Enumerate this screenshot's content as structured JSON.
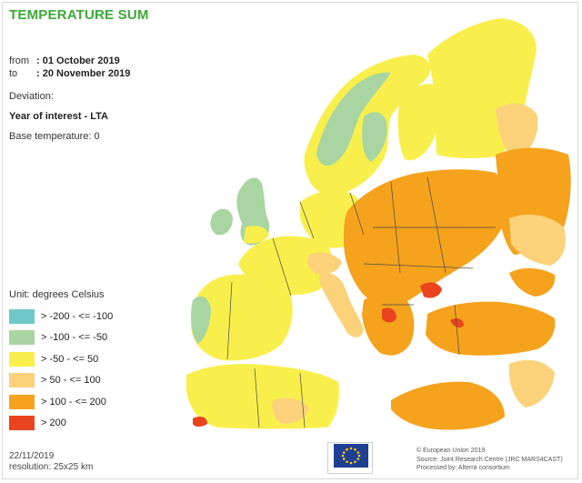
{
  "title": "TEMPERATURE SUM",
  "period": {
    "from_label": "from",
    "from_value": ": 01 October 2019",
    "to_label": "to",
    "to_value": ": 20 November 2019"
  },
  "deviation_label": "Deviation:",
  "year_of_interest": "Year of interest - LTA",
  "base_temperature": "Base temperature: 0",
  "legend": {
    "unit": "Unit: degrees Celsius",
    "items": [
      {
        "label": "> -200 - <= -100",
        "color": "#6fc8c8"
      },
      {
        "label": "> -100 - <= -50",
        "color": "#a8d5a2"
      },
      {
        "label": "> -50 - <= 50",
        "color": "#f9ef4c"
      },
      {
        "label": "> 50 - <= 100",
        "color": "#fbd27a"
      },
      {
        "label": "> 100 - <= 200",
        "color": "#f5a21c"
      },
      {
        "label": "> 200",
        "color": "#e9441d"
      }
    ]
  },
  "footer": {
    "date": "22/11/2019",
    "resolution": "resolution: 25x25 km",
    "credit_1": "© European Union 2019",
    "credit_2": "Source: Joint Research Centre (JRC MARS4CAST)",
    "credit_3": "Processed by: Alterra consortium"
  },
  "colors": {
    "title": "#3aaa35",
    "sea": "#ffffff",
    "border_lines": "#4a4a4a",
    "eu_blue": "#1f3f94",
    "eu_gold": "#ffcc00"
  }
}
